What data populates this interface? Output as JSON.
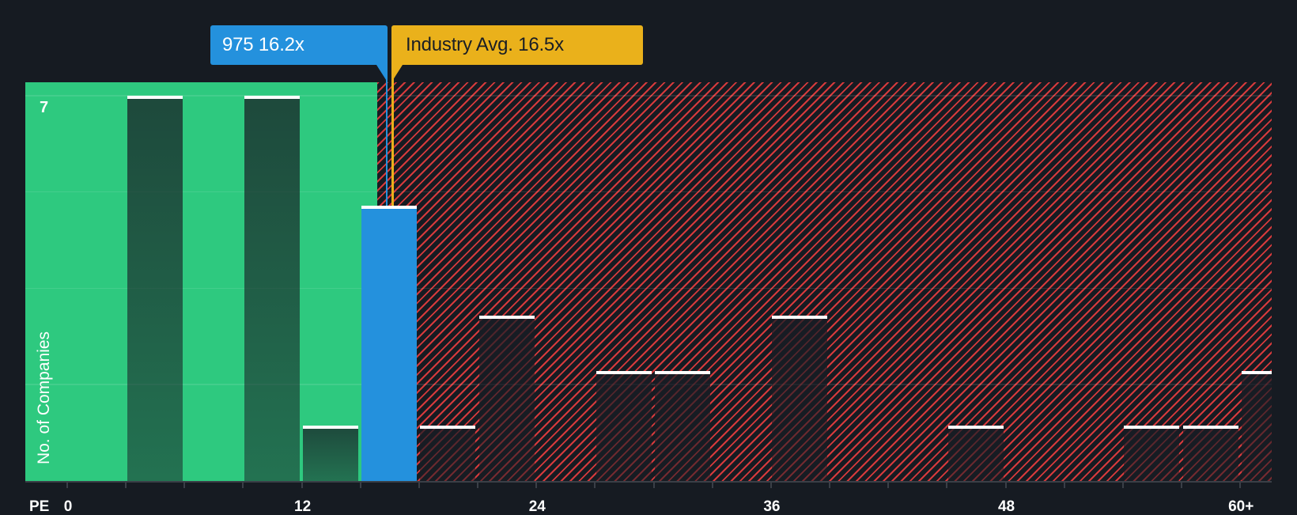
{
  "labels": {
    "company": "975 16.2x",
    "industry": "Industry Avg. 16.5x"
  },
  "axes": {
    "x_title": "PE",
    "y_title": "No. of Companies"
  },
  "colors": {
    "background": "#161b22",
    "undervalued_zone": "#2ec97f",
    "overvalued_hatch": "#d63a3c",
    "company_bar": "#2491dd",
    "industry_marker": "#eab11b",
    "bar_cap": "#ffffff",
    "axis": "#3a3f47"
  },
  "chart_data": {
    "type": "bar",
    "title": "",
    "xlabel": "PE",
    "ylabel": "No. of Companies",
    "bin_width": 3,
    "categories": [
      "0-3",
      "3-6",
      "6-9",
      "9-12",
      "12-15",
      "15-18",
      "18-21",
      "21-24",
      "24-27",
      "27-30",
      "30-33",
      "33-36",
      "36-39",
      "39-42",
      "42-45",
      "45-48",
      "48-51",
      "51-54",
      "54-57",
      "57-60",
      "60+"
    ],
    "values": [
      0,
      7,
      0,
      7,
      1,
      5,
      1,
      3,
      0,
      2,
      2,
      0,
      3,
      0,
      0,
      1,
      0,
      0,
      1,
      1,
      2
    ],
    "x_ticks": [
      0,
      12,
      24,
      36,
      48,
      60
    ],
    "x_tick_labels": [
      "0",
      "12",
      "24",
      "36",
      "48",
      "60+"
    ],
    "y_ticks": [
      7
    ],
    "y_tick_labels": [
      "7"
    ],
    "y_gridlines": [
      1.75,
      3.5,
      5.25,
      7
    ],
    "xlim": [
      0,
      60
    ],
    "ylim": [
      0,
      7
    ],
    "grid": true,
    "legend": null,
    "highlight": {
      "label": "975",
      "value": 16.2,
      "bin": "15-18"
    },
    "reference_lines": [
      {
        "label": "975",
        "value": 16.2,
        "color": "#2491dd"
      },
      {
        "label": "Industry Avg.",
        "value": 16.5,
        "color": "#eab11b"
      }
    ],
    "zones": [
      {
        "name": "below-company-pe",
        "from": 0,
        "to": 16.2,
        "color": "#2ec97f",
        "pattern": "solid"
      },
      {
        "name": "above-company-pe",
        "from": 16.2,
        "to": 60,
        "color": "#d63a3c",
        "pattern": "hatched"
      }
    ],
    "annotations": [
      "975 16.2x",
      "Industry Avg. 16.5x"
    ]
  }
}
